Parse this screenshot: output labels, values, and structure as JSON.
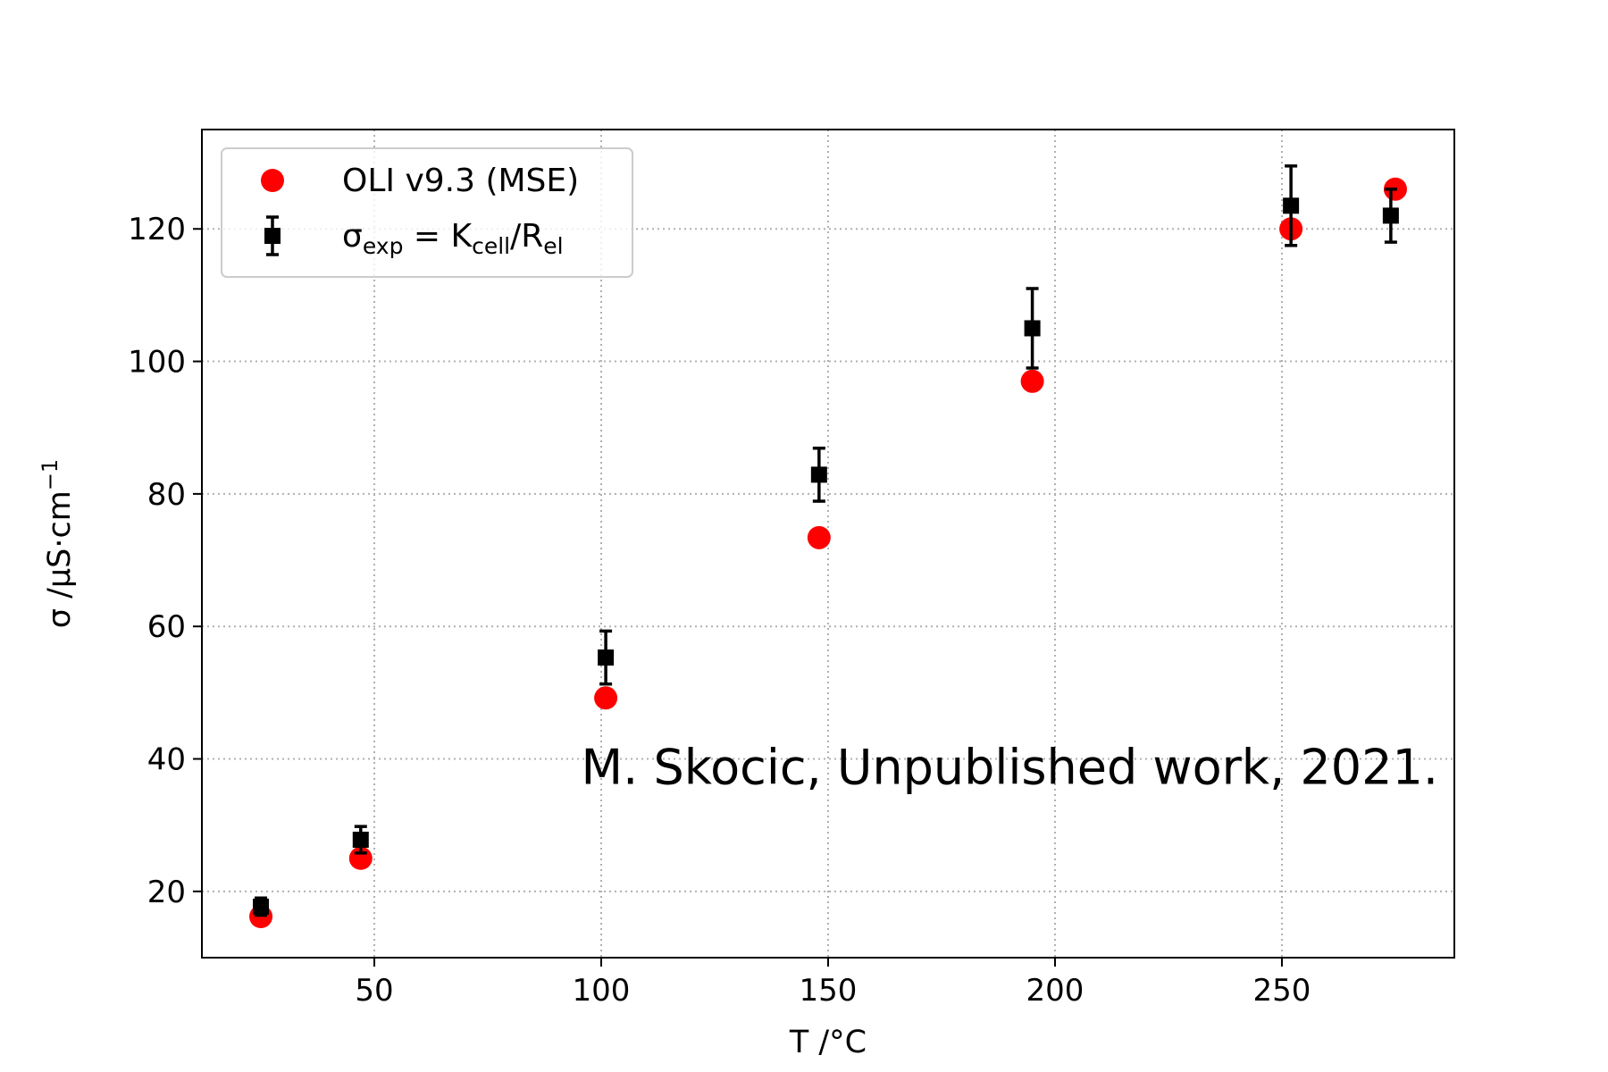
{
  "chart_data": {
    "type": "scatter",
    "xlabel": "T /°C",
    "ylabel": {
      "base": "σ /μS·cm",
      "sup": "−1"
    },
    "xlim": [
      12,
      288
    ],
    "ylim": [
      10,
      135
    ],
    "xticks": [
      50,
      100,
      150,
      200,
      250
    ],
    "yticks": [
      20,
      40,
      60,
      80,
      100,
      120
    ],
    "grid": true,
    "legend_position": "top-left",
    "annotation": "M. Skocic, Unpublished work, 2021.",
    "series": [
      {
        "name": "OLI v9.3 (MSE)",
        "marker": "circle",
        "color": "#ff0000",
        "points": [
          {
            "x": 25,
            "y": 16.2
          },
          {
            "x": 47,
            "y": 25
          },
          {
            "x": 101,
            "y": 49.2
          },
          {
            "x": 148,
            "y": 73.4
          },
          {
            "x": 195,
            "y": 97
          },
          {
            "x": 252,
            "y": 120
          },
          {
            "x": 275,
            "y": 126
          }
        ]
      },
      {
        "name": {
          "sigma": "σ",
          "sub1": "exp",
          "eq": " = K",
          "sub2": "cell",
          "slash": "/R",
          "sub3": "el"
        },
        "marker": "square",
        "color": "#000000",
        "points": [
          {
            "x": 25,
            "y": 17.7,
            "err": 1.3
          },
          {
            "x": 47,
            "y": 27.8,
            "err": 2.0
          },
          {
            "x": 101,
            "y": 55.3,
            "err": 4.0
          },
          {
            "x": 148,
            "y": 82.9,
            "err": 4.0
          },
          {
            "x": 195,
            "y": 105,
            "err": 6.0
          },
          {
            "x": 252,
            "y": 123.5,
            "err": 6.0
          },
          {
            "x": 274,
            "y": 122,
            "err": 4.0
          }
        ]
      }
    ]
  }
}
